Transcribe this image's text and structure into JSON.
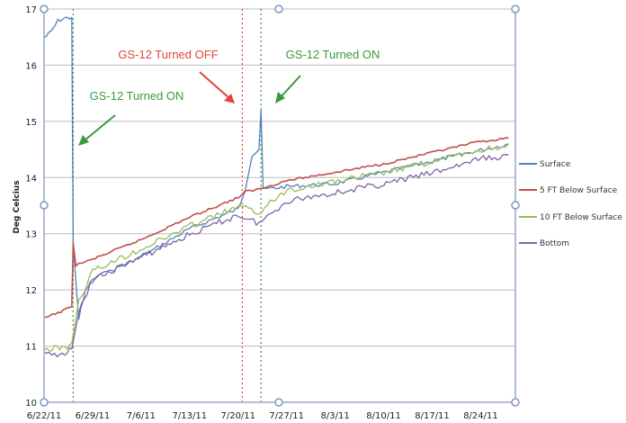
{
  "chart_data": {
    "type": "line",
    "ylabel": "Deg Celcius",
    "ylim": [
      10,
      17
    ],
    "y_ticks": [
      "10",
      "11",
      "12",
      "13",
      "14",
      "15",
      "16",
      "17"
    ],
    "x_range": [
      "2011-06-22",
      "2011-08-29"
    ],
    "x_ticks": [
      {
        "date": "2011-06-22",
        "label": "6/22/11"
      },
      {
        "date": "2011-06-29",
        "label": "6/29/11"
      },
      {
        "date": "2011-07-06",
        "label": "7/6/11"
      },
      {
        "date": "2011-07-13",
        "label": "7/13/11"
      },
      {
        "date": "2011-07-20",
        "label": "7/20/11"
      },
      {
        "date": "2011-07-27",
        "label": "7/27/11"
      },
      {
        "date": "2011-08-03",
        "label": "8/3/11"
      },
      {
        "date": "2011-08-10",
        "label": "8/10/11"
      },
      {
        "date": "2011-08-17",
        "label": "8/17/11"
      },
      {
        "date": "2011-08-24",
        "label": "8/24/11"
      }
    ],
    "grid": "horizontal",
    "legend_position": "right",
    "series": [
      {
        "name": "Surface",
        "color": "#4f81bd",
        "points": [
          [
            "2011-06-22",
            16.5
          ],
          [
            "2011-06-23",
            16.6
          ],
          [
            "2011-06-24",
            16.8
          ],
          [
            "2011-06-25",
            16.85
          ],
          [
            "2011-06-26",
            16.85
          ],
          [
            "2011-06-26.2",
            12.8
          ],
          [
            "2011-06-27",
            11.5
          ],
          [
            "2011-06-28",
            12.0
          ],
          [
            "2011-06-29",
            12.2
          ],
          [
            "2011-07-06",
            12.6
          ],
          [
            "2011-07-13",
            13.1
          ],
          [
            "2011-07-20",
            13.45
          ],
          [
            "2011-07-21",
            13.8
          ],
          [
            "2011-07-22",
            14.4
          ],
          [
            "2011-07-23",
            14.5
          ],
          [
            "2011-07-23.3",
            15.2
          ],
          [
            "2011-07-23.6",
            13.8
          ],
          [
            "2011-07-27",
            13.85
          ],
          [
            "2011-08-03",
            13.9
          ],
          [
            "2011-08-10",
            14.1
          ],
          [
            "2011-08-17",
            14.3
          ],
          [
            "2011-08-24",
            14.5
          ],
          [
            "2011-08-28",
            14.6
          ]
        ]
      },
      {
        "name": "5 FT Below Surface",
        "color": "#c0504d",
        "points": [
          [
            "2011-06-22",
            11.5
          ],
          [
            "2011-06-24",
            11.6
          ],
          [
            "2011-06-26",
            11.7
          ],
          [
            "2011-06-26.2",
            12.85
          ],
          [
            "2011-06-26.6",
            12.45
          ],
          [
            "2011-06-29",
            12.55
          ],
          [
            "2011-07-06",
            12.9
          ],
          [
            "2011-07-13",
            13.3
          ],
          [
            "2011-07-20",
            13.65
          ],
          [
            "2011-07-21",
            13.75
          ],
          [
            "2011-07-23",
            13.8
          ],
          [
            "2011-07-27",
            13.95
          ],
          [
            "2011-08-03",
            14.1
          ],
          [
            "2011-08-10",
            14.25
          ],
          [
            "2011-08-17",
            14.45
          ],
          [
            "2011-08-24",
            14.65
          ],
          [
            "2011-08-28",
            14.7
          ]
        ]
      },
      {
        "name": "10 FT Below Surface",
        "color": "#9bbb59",
        "points": [
          [
            "2011-06-22",
            10.95
          ],
          [
            "2011-06-25",
            11.0
          ],
          [
            "2011-06-26",
            11.05
          ],
          [
            "2011-06-27",
            11.8
          ],
          [
            "2011-06-29",
            12.35
          ],
          [
            "2011-07-06",
            12.75
          ],
          [
            "2011-07-13",
            13.15
          ],
          [
            "2011-07-20",
            13.5
          ],
          [
            "2011-07-23",
            13.4
          ],
          [
            "2011-07-27",
            13.8
          ],
          [
            "2011-08-03",
            13.95
          ],
          [
            "2011-08-10",
            14.1
          ],
          [
            "2011-08-17",
            14.3
          ],
          [
            "2011-08-24",
            14.5
          ],
          [
            "2011-08-28",
            14.6
          ]
        ]
      },
      {
        "name": "Bottom",
        "color": "#8064a2",
        "points": [
          [
            "2011-06-22",
            10.85
          ],
          [
            "2011-06-25",
            10.9
          ],
          [
            "2011-06-26",
            10.95
          ],
          [
            "2011-06-27",
            11.6
          ],
          [
            "2011-06-29",
            12.2
          ],
          [
            "2011-07-06",
            12.6
          ],
          [
            "2011-07-13",
            13.0
          ],
          [
            "2011-07-20",
            13.35
          ],
          [
            "2011-07-23",
            13.2
          ],
          [
            "2011-07-27",
            13.6
          ],
          [
            "2011-08-03",
            13.75
          ],
          [
            "2011-08-10",
            13.9
          ],
          [
            "2011-08-17",
            14.1
          ],
          [
            "2011-08-24",
            14.35
          ],
          [
            "2011-08-28",
            14.4
          ]
        ]
      }
    ],
    "event_lines": [
      {
        "date": "2011-06-26.2",
        "color": "#3a9a3a"
      },
      {
        "date": "2011-07-20.6",
        "color": "#e0463c"
      },
      {
        "date": "2011-07-23.3",
        "color": "#3a9a3a"
      }
    ],
    "annotations": [
      {
        "text": "GS-12 Turned OFF",
        "color": "#e0463c"
      },
      {
        "text": "GS-12 Turned ON",
        "color": "#3a9a3a"
      },
      {
        "text": "GS-12 Turned ON",
        "color": "#3a9a3a"
      }
    ]
  }
}
